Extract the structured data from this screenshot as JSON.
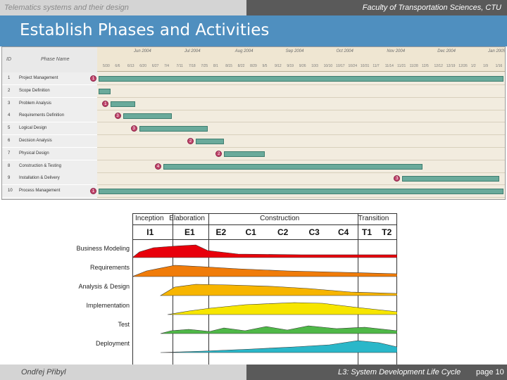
{
  "header": {
    "left_text": "Telematics systems and their design",
    "right_text": "Faculty of Transportation Sciences, CTU"
  },
  "title": "Establish Phases and Activities",
  "gantt": {
    "col_id": "ID",
    "col_name": "Phase Name",
    "months": [
      "Jun 2004",
      "Jul 2004",
      "Aug 2004",
      "Sep 2004",
      "Oct 2004",
      "Nov 2004",
      "Dec 2004",
      "Jan 2005"
    ],
    "weeks": [
      "5/30",
      "6/6",
      "6/13",
      "6/20",
      "6/27",
      "7/4",
      "7/11",
      "7/18",
      "7/25",
      "8/1",
      "8/15",
      "8/22",
      "8/29",
      "9/5",
      "9/12",
      "9/19",
      "9/26",
      "10/3",
      "10/10",
      "10/17",
      "10/24",
      "10/31",
      "11/7",
      "11/14",
      "11/21",
      "11/28",
      "12/5",
      "12/12",
      "12/19",
      "12/26",
      "1/2",
      "1/9",
      "1/16"
    ],
    "rows": [
      {
        "id": "1",
        "name": "Project Management",
        "badge": "1",
        "start": 0.0,
        "end": 1.0
      },
      {
        "id": "2",
        "name": "Scope Definition",
        "badge": "",
        "start": 0.0,
        "end": 0.03
      },
      {
        "id": "3",
        "name": "Problem Analysis",
        "badge": "1",
        "start": 0.03,
        "end": 0.09
      },
      {
        "id": "4",
        "name": "Requirements Definition",
        "badge": "3",
        "start": 0.06,
        "end": 0.18
      },
      {
        "id": "5",
        "name": "Logical Design",
        "badge": "3",
        "start": 0.1,
        "end": 0.27
      },
      {
        "id": "6",
        "name": "Decision Analysis",
        "badge": "2",
        "start": 0.24,
        "end": 0.31
      },
      {
        "id": "7",
        "name": "Physical Design",
        "badge": "2",
        "start": 0.31,
        "end": 0.41
      },
      {
        "id": "8",
        "name": "Construction & Testing",
        "badge": "4",
        "start": 0.16,
        "end": 0.8
      },
      {
        "id": "9",
        "name": "Installation & Delivery",
        "badge": "3",
        "start": 0.75,
        "end": 0.99
      },
      {
        "id": "10",
        "name": "Process Management",
        "badge": "1",
        "start": 0.0,
        "end": 1.0
      }
    ]
  },
  "rup": {
    "phases": [
      "Inception",
      "Elaboration",
      "Construction",
      "Transition"
    ],
    "iterations": [
      "I1",
      "E1",
      "E2",
      "C1",
      "C2",
      "C3",
      "C4",
      "T1",
      "T2"
    ],
    "disciplines": [
      {
        "name": "Business Modeling",
        "color": "#e8000b"
      },
      {
        "name": "Requirements",
        "color": "#f07c0a"
      },
      {
        "name": "Analysis & Design",
        "color": "#f7b500"
      },
      {
        "name": "Implementation",
        "color": "#f7e600"
      },
      {
        "name": "Test",
        "color": "#4fb848"
      },
      {
        "name": "Deployment",
        "color": "#2ab7c9"
      }
    ]
  },
  "footer": {
    "author": "Ondřej Přibyl",
    "course": "L3: System Development Life Cycle",
    "page": "page 10"
  }
}
